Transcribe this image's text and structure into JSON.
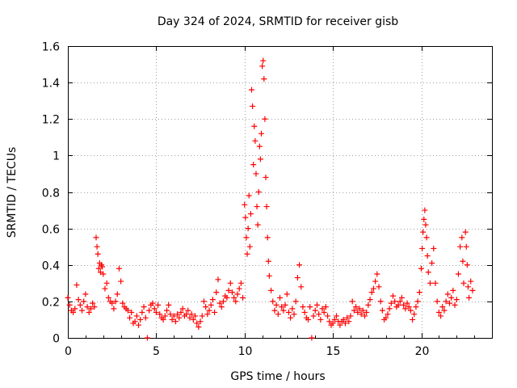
{
  "chart_data": {
    "type": "scatter",
    "title": "Day 324 of 2024, SRMTID for receiver gisb",
    "xlabel": "GPS time / hours",
    "ylabel": "SRMTID / TECUs",
    "xlim": [
      0,
      24
    ],
    "ylim": [
      0,
      1.6
    ],
    "xticks": [
      0,
      5,
      10,
      15,
      20
    ],
    "xtick_labels": [
      "0",
      "5",
      "10",
      "15",
      "20"
    ],
    "yticks": [
      0,
      0.2,
      0.4,
      0.6,
      0.8,
      1,
      1.2,
      1.4,
      1.6
    ],
    "ytick_labels": [
      "0",
      "0.2",
      "0.4",
      "0.6",
      "0.8",
      "1",
      "1.2",
      "1.4",
      "1.6"
    ],
    "grid": true,
    "marker": "+",
    "color": "#ff0000",
    "series": [
      {
        "name": "SRMTID",
        "points": [
          [
            0.0,
            0.22
          ],
          [
            0.1,
            0.18
          ],
          [
            0.2,
            0.15
          ],
          [
            0.3,
            0.14
          ],
          [
            0.4,
            0.16
          ],
          [
            0.5,
            0.29
          ],
          [
            0.6,
            0.21
          ],
          [
            0.7,
            0.18
          ],
          [
            0.8,
            0.15
          ],
          [
            0.9,
            0.2
          ],
          [
            1.0,
            0.24
          ],
          [
            1.1,
            0.17
          ],
          [
            1.2,
            0.14
          ],
          [
            1.3,
            0.16
          ],
          [
            1.4,
            0.19
          ],
          [
            1.5,
            0.17
          ],
          [
            1.6,
            0.55
          ],
          [
            1.65,
            0.5
          ],
          [
            1.7,
            0.46
          ],
          [
            1.75,
            0.38
          ],
          [
            1.8,
            0.41
          ],
          [
            1.85,
            0.36
          ],
          [
            1.9,
            0.4
          ],
          [
            1.95,
            0.39
          ],
          [
            2.0,
            0.35
          ],
          [
            2.1,
            0.27
          ],
          [
            2.2,
            0.3
          ],
          [
            2.3,
            0.22
          ],
          [
            2.4,
            0.2
          ],
          [
            2.5,
            0.19
          ],
          [
            2.6,
            0.16
          ],
          [
            2.7,
            0.2
          ],
          [
            2.8,
            0.24
          ],
          [
            2.9,
            0.38
          ],
          [
            3.0,
            0.31
          ],
          [
            3.1,
            0.19
          ],
          [
            3.2,
            0.17
          ],
          [
            3.3,
            0.16
          ],
          [
            3.4,
            0.15
          ],
          [
            3.5,
            0.11
          ],
          [
            3.6,
            0.14
          ],
          [
            3.7,
            0.08
          ],
          [
            3.8,
            0.09
          ],
          [
            3.9,
            0.12
          ],
          [
            4.0,
            0.07
          ],
          [
            4.1,
            0.1
          ],
          [
            4.2,
            0.14
          ],
          [
            4.3,
            0.17
          ],
          [
            4.4,
            0.11
          ],
          [
            4.5,
            0.0
          ],
          [
            4.6,
            0.15
          ],
          [
            4.7,
            0.18
          ],
          [
            4.8,
            0.19
          ],
          [
            4.9,
            0.16
          ],
          [
            5.0,
            0.14
          ],
          [
            5.1,
            0.18
          ],
          [
            5.2,
            0.13
          ],
          [
            5.3,
            0.11
          ],
          [
            5.4,
            0.1
          ],
          [
            5.5,
            0.12
          ],
          [
            5.6,
            0.15
          ],
          [
            5.7,
            0.18
          ],
          [
            5.8,
            0.13
          ],
          [
            5.9,
            0.1
          ],
          [
            6.0,
            0.12
          ],
          [
            6.1,
            0.09
          ],
          [
            6.2,
            0.13
          ],
          [
            6.3,
            0.11
          ],
          [
            6.4,
            0.14
          ],
          [
            6.5,
            0.16
          ],
          [
            6.6,
            0.12
          ],
          [
            6.7,
            0.13
          ],
          [
            6.8,
            0.15
          ],
          [
            6.9,
            0.11
          ],
          [
            7.0,
            0.13
          ],
          [
            7.1,
            0.1
          ],
          [
            7.2,
            0.12
          ],
          [
            7.3,
            0.08
          ],
          [
            7.4,
            0.06
          ],
          [
            7.5,
            0.09
          ],
          [
            7.6,
            0.12
          ],
          [
            7.7,
            0.2
          ],
          [
            7.8,
            0.17
          ],
          [
            7.9,
            0.13
          ],
          [
            8.0,
            0.15
          ],
          [
            8.1,
            0.18
          ],
          [
            8.2,
            0.21
          ],
          [
            8.3,
            0.14
          ],
          [
            8.4,
            0.25
          ],
          [
            8.5,
            0.32
          ],
          [
            8.6,
            0.19
          ],
          [
            8.7,
            0.17
          ],
          [
            8.8,
            0.2
          ],
          [
            8.9,
            0.23
          ],
          [
            9.0,
            0.22
          ],
          [
            9.1,
            0.26
          ],
          [
            9.2,
            0.3
          ],
          [
            9.3,
            0.25
          ],
          [
            9.4,
            0.22
          ],
          [
            9.5,
            0.2
          ],
          [
            9.6,
            0.24
          ],
          [
            9.7,
            0.27
          ],
          [
            9.8,
            0.3
          ],
          [
            9.9,
            0.22
          ],
          [
            10.0,
            0.73
          ],
          [
            10.05,
            0.66
          ],
          [
            10.1,
            0.55
          ],
          [
            10.15,
            0.46
          ],
          [
            10.2,
            0.6
          ],
          [
            10.25,
            0.78
          ],
          [
            10.3,
            0.5
          ],
          [
            10.35,
            0.68
          ],
          [
            10.4,
            1.36
          ],
          [
            10.45,
            1.27
          ],
          [
            10.5,
            0.95
          ],
          [
            10.55,
            1.16
          ],
          [
            10.6,
            1.08
          ],
          [
            10.65,
            0.9
          ],
          [
            10.7,
            0.72
          ],
          [
            10.75,
            0.62
          ],
          [
            10.8,
            0.8
          ],
          [
            10.85,
            1.05
          ],
          [
            10.9,
            0.98
          ],
          [
            10.95,
            1.12
          ],
          [
            11.0,
            1.49
          ],
          [
            11.05,
            1.52
          ],
          [
            11.1,
            1.42
          ],
          [
            11.15,
            1.2
          ],
          [
            11.2,
            0.88
          ],
          [
            11.25,
            0.72
          ],
          [
            11.3,
            0.55
          ],
          [
            11.35,
            0.42
          ],
          [
            11.4,
            0.34
          ],
          [
            11.5,
            0.26
          ],
          [
            11.6,
            0.2
          ],
          [
            11.7,
            0.15
          ],
          [
            11.8,
            0.18
          ],
          [
            11.9,
            0.13
          ],
          [
            12.0,
            0.22
          ],
          [
            12.1,
            0.17
          ],
          [
            12.2,
            0.15
          ],
          [
            12.3,
            0.18
          ],
          [
            12.4,
            0.24
          ],
          [
            12.5,
            0.14
          ],
          [
            12.6,
            0.11
          ],
          [
            12.7,
            0.16
          ],
          [
            12.8,
            0.13
          ],
          [
            12.9,
            0.2
          ],
          [
            13.0,
            0.33
          ],
          [
            13.1,
            0.4
          ],
          [
            13.2,
            0.28
          ],
          [
            13.3,
            0.17
          ],
          [
            13.4,
            0.14
          ],
          [
            13.5,
            0.11
          ],
          [
            13.6,
            0.1
          ],
          [
            13.7,
            0.17
          ],
          [
            13.8,
            0.0
          ],
          [
            13.9,
            0.12
          ],
          [
            14.0,
            0.15
          ],
          [
            14.1,
            0.18
          ],
          [
            14.2,
            0.13
          ],
          [
            14.3,
            0.1
          ],
          [
            14.4,
            0.16
          ],
          [
            14.5,
            0.14
          ],
          [
            14.6,
            0.17
          ],
          [
            14.7,
            0.12
          ],
          [
            14.8,
            0.09
          ],
          [
            14.9,
            0.07
          ],
          [
            15.0,
            0.08
          ],
          [
            15.1,
            0.1
          ],
          [
            15.2,
            0.12
          ],
          [
            15.3,
            0.09
          ],
          [
            15.4,
            0.07
          ],
          [
            15.5,
            0.09
          ],
          [
            15.6,
            0.1
          ],
          [
            15.7,
            0.08
          ],
          [
            15.8,
            0.11
          ],
          [
            15.9,
            0.09
          ],
          [
            16.0,
            0.12
          ],
          [
            16.1,
            0.2
          ],
          [
            16.2,
            0.15
          ],
          [
            16.3,
            0.17
          ],
          [
            16.4,
            0.14
          ],
          [
            16.5,
            0.16
          ],
          [
            16.6,
            0.13
          ],
          [
            16.7,
            0.15
          ],
          [
            16.8,
            0.12
          ],
          [
            16.9,
            0.14
          ],
          [
            17.0,
            0.18
          ],
          [
            17.1,
            0.21
          ],
          [
            17.2,
            0.25
          ],
          [
            17.3,
            0.27
          ],
          [
            17.4,
            0.31
          ],
          [
            17.5,
            0.35
          ],
          [
            17.6,
            0.28
          ],
          [
            17.7,
            0.2
          ],
          [
            17.8,
            0.15
          ],
          [
            17.9,
            0.1
          ],
          [
            18.0,
            0.11
          ],
          [
            18.1,
            0.13
          ],
          [
            18.2,
            0.16
          ],
          [
            18.3,
            0.19
          ],
          [
            18.4,
            0.23
          ],
          [
            18.5,
            0.2
          ],
          [
            18.6,
            0.17
          ],
          [
            18.7,
            0.18
          ],
          [
            18.8,
            0.2
          ],
          [
            18.9,
            0.22
          ],
          [
            19.0,
            0.18
          ],
          [
            19.1,
            0.16
          ],
          [
            19.2,
            0.19
          ],
          [
            19.3,
            0.17
          ],
          [
            19.4,
            0.15
          ],
          [
            19.5,
            0.1
          ],
          [
            19.6,
            0.13
          ],
          [
            19.7,
            0.17
          ],
          [
            19.8,
            0.2
          ],
          [
            19.9,
            0.25
          ],
          [
            20.0,
            0.38
          ],
          [
            20.05,
            0.49
          ],
          [
            20.1,
            0.58
          ],
          [
            20.15,
            0.65
          ],
          [
            20.2,
            0.7
          ],
          [
            20.25,
            0.62
          ],
          [
            20.3,
            0.55
          ],
          [
            20.35,
            0.45
          ],
          [
            20.4,
            0.36
          ],
          [
            20.5,
            0.3
          ],
          [
            20.6,
            0.41
          ],
          [
            20.7,
            0.49
          ],
          [
            20.8,
            0.3
          ],
          [
            20.9,
            0.2
          ],
          [
            21.0,
            0.14
          ],
          [
            21.1,
            0.12
          ],
          [
            21.2,
            0.17
          ],
          [
            21.3,
            0.15
          ],
          [
            21.4,
            0.2
          ],
          [
            21.5,
            0.24
          ],
          [
            21.6,
            0.19
          ],
          [
            21.7,
            0.22
          ],
          [
            21.8,
            0.26
          ],
          [
            21.9,
            0.18
          ],
          [
            22.0,
            0.21
          ],
          [
            22.1,
            0.35
          ],
          [
            22.2,
            0.5
          ],
          [
            22.3,
            0.55
          ],
          [
            22.35,
            0.42
          ],
          [
            22.4,
            0.3
          ],
          [
            22.5,
            0.58
          ],
          [
            22.55,
            0.5
          ],
          [
            22.6,
            0.4
          ],
          [
            22.65,
            0.28
          ],
          [
            22.7,
            0.22
          ],
          [
            22.8,
            0.31
          ],
          [
            22.9,
            0.26
          ]
        ]
      }
    ]
  }
}
